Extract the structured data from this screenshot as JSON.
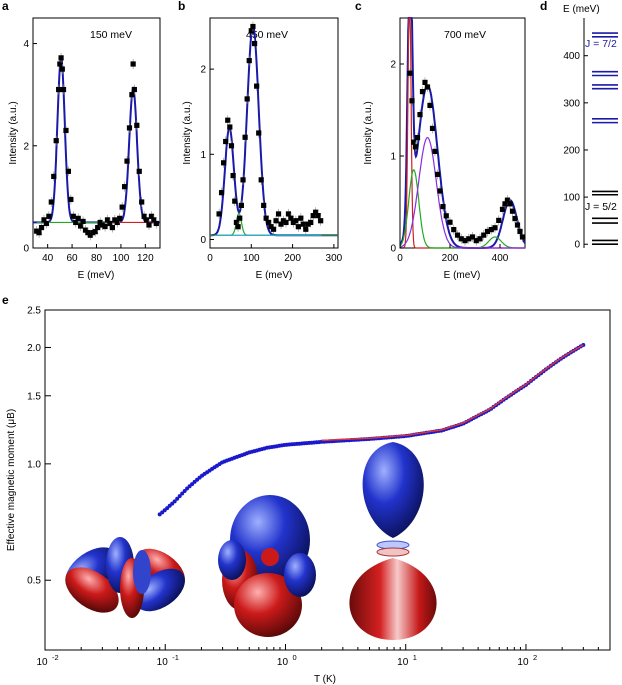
{
  "colors": {
    "fit": "#1a1aa8",
    "data": "#000000",
    "green": "#22aa22",
    "red": "#cc2222",
    "cyan": "#22aacc",
    "level_gs": "#000000",
    "level_ex": "#1a1aa8",
    "moment_data": "#1a1acc",
    "moment_fit": "#dd3333"
  },
  "panels": {
    "a": {
      "label": "a",
      "annotation": "150 meV",
      "chart_data": {
        "type": "scatter",
        "xlabel": "E (meV)",
        "ylabel": "Intensity (a.u.)",
        "xlim": [
          28,
          132
        ],
        "ylim": [
          0,
          4.5
        ],
        "xticks": [
          "40",
          "60",
          "80",
          "100",
          "120"
        ],
        "yticks": [
          "0",
          "2",
          "4"
        ],
        "points": [
          [
            31,
            0.33
          ],
          [
            33,
            0.3
          ],
          [
            35,
            0.4
          ],
          [
            37,
            0.55
          ],
          [
            39,
            0.48
          ],
          [
            41,
            0.62
          ],
          [
            43,
            0.9
          ],
          [
            45,
            1.4
          ],
          [
            47,
            2.1
          ],
          [
            49,
            3.1
          ],
          [
            50,
            3.6
          ],
          [
            51,
            3.72
          ],
          [
            52,
            3.5
          ],
          [
            53,
            3.1
          ],
          [
            55,
            2.3
          ],
          [
            57,
            1.5
          ],
          [
            59,
            0.95
          ],
          [
            61,
            0.62
          ],
          [
            63,
            0.5
          ],
          [
            65,
            0.58
          ],
          [
            67,
            0.43
          ],
          [
            69,
            0.52
          ],
          [
            71,
            0.35
          ],
          [
            73,
            0.3
          ],
          [
            75,
            0.25
          ],
          [
            77,
            0.3
          ],
          [
            79,
            0.32
          ],
          [
            81,
            0.4
          ],
          [
            83,
            0.5
          ],
          [
            85,
            0.45
          ],
          [
            87,
            0.42
          ],
          [
            89,
            0.55
          ],
          [
            91,
            0.48
          ],
          [
            93,
            0.4
          ],
          [
            95,
            0.55
          ],
          [
            97,
            0.5
          ],
          [
            99,
            0.58
          ],
          [
            101,
            0.8
          ],
          [
            103,
            1.2
          ],
          [
            105,
            1.7
          ],
          [
            107,
            2.35
          ],
          [
            109,
            3.0
          ],
          [
            110,
            3.6
          ],
          [
            111,
            3.1
          ],
          [
            113,
            2.4
          ],
          [
            115,
            1.5
          ],
          [
            117,
            0.9
          ],
          [
            119,
            0.62
          ],
          [
            121,
            0.55
          ],
          [
            123,
            0.45
          ],
          [
            125,
            0.62
          ],
          [
            127,
            0.55
          ],
          [
            129,
            0.48
          ]
        ],
        "series": [
          {
            "key": "fit",
            "peaks": [
              [
                51,
                3.22,
                3.0
              ],
              [
                110,
                2.62,
                3.2
              ]
            ],
            "baseline": 0.5
          },
          {
            "key": "green",
            "range": [
              31,
              90
            ],
            "value": 0.5
          },
          {
            "key": "red",
            "range": [
              90,
              130
            ],
            "value": 0.5
          }
        ]
      }
    },
    "b": {
      "label": "b",
      "annotation": "450 meV",
      "chart_data": {
        "type": "scatter",
        "xlabel": "E (meV)",
        "ylabel": "Intensity (a.u.)",
        "xlim": [
          0,
          310
        ],
        "ylim": [
          -0.1,
          2.6
        ],
        "xticks": [
          "0",
          "100",
          "200",
          "300"
        ],
        "yticks": [
          "0",
          "1",
          "2"
        ],
        "points": [
          [
            22,
            0.3
          ],
          [
            28,
            0.55
          ],
          [
            33,
            0.9
          ],
          [
            38,
            1.15
          ],
          [
            43,
            1.4
          ],
          [
            48,
            1.32
          ],
          [
            52,
            1.1
          ],
          [
            56,
            0.75
          ],
          [
            60,
            0.45
          ],
          [
            64,
            0.2
          ],
          [
            68,
            0.15
          ],
          [
            72,
            0.25
          ],
          [
            76,
            0.4
          ],
          [
            80,
            0.7
          ],
          [
            85,
            1.2
          ],
          [
            90,
            1.65
          ],
          [
            95,
            2.1
          ],
          [
            100,
            2.45
          ],
          [
            104,
            2.5
          ],
          [
            108,
            2.3
          ],
          [
            113,
            1.8
          ],
          [
            118,
            1.25
          ],
          [
            124,
            0.7
          ],
          [
            130,
            0.4
          ],
          [
            136,
            0.25
          ],
          [
            142,
            0.2
          ],
          [
            148,
            0.15
          ],
          [
            154,
            0.12
          ],
          [
            160,
            0.22
          ],
          [
            166,
            0.3
          ],
          [
            172,
            0.18
          ],
          [
            178,
            0.22
          ],
          [
            184,
            0.2
          ],
          [
            190,
            0.3
          ],
          [
            196,
            0.25
          ],
          [
            202,
            0.2
          ],
          [
            208,
            0.22
          ],
          [
            214,
            0.15
          ],
          [
            220,
            0.25
          ],
          [
            226,
            0.18
          ],
          [
            232,
            0.12
          ],
          [
            238,
            0.18
          ],
          [
            244,
            0.2
          ],
          [
            250,
            0.28
          ],
          [
            256,
            0.32
          ],
          [
            262,
            0.28
          ],
          [
            268,
            0.22
          ]
        ],
        "series": [
          {
            "key": "fit",
            "peaks": [
              [
                47,
                1.26,
                11
              ],
              [
                104,
                2.46,
                14
              ]
            ],
            "baseline": 0.05
          },
          {
            "key": "green",
            "peaks": [
              [
                70,
                0.26,
                6
              ]
            ],
            "baseline": 0.05
          },
          {
            "key": "cyan",
            "range": [
              15,
              270
            ],
            "value": 0.05
          }
        ]
      }
    },
    "c": {
      "label": "c",
      "annotation": "700 meV",
      "chart_data": {
        "type": "scatter",
        "xlabel": "E (meV)",
        "ylabel": "Intensity (a.u.)",
        "xlim": [
          0,
          500
        ],
        "ylim": [
          0,
          2.5
        ],
        "xticks": [
          "0",
          "200",
          "400"
        ],
        "yticks": [
          "0",
          "1",
          "2"
        ],
        "points": [
          [
            40,
            1.9
          ],
          [
            48,
            1.6
          ],
          [
            55,
            1.15
          ],
          [
            62,
            1.1
          ],
          [
            70,
            1.2
          ],
          [
            80,
            1.45
          ],
          [
            90,
            1.7
          ],
          [
            100,
            1.8
          ],
          [
            110,
            1.75
          ],
          [
            120,
            1.55
          ],
          [
            130,
            1.3
          ],
          [
            140,
            1.05
          ],
          [
            150,
            0.8
          ],
          [
            160,
            0.62
          ],
          [
            172,
            0.45
          ],
          [
            185,
            0.35
          ],
          [
            200,
            0.28
          ],
          [
            215,
            0.2
          ],
          [
            230,
            0.14
          ],
          [
            245,
            0.1
          ],
          [
            260,
            0.08
          ],
          [
            275,
            0.1
          ],
          [
            290,
            0.12
          ],
          [
            305,
            0.08
          ],
          [
            320,
            0.1
          ],
          [
            335,
            0.14
          ],
          [
            350,
            0.18
          ],
          [
            365,
            0.2
          ],
          [
            380,
            0.22
          ],
          [
            395,
            0.3
          ],
          [
            410,
            0.42
          ],
          [
            420,
            0.48
          ],
          [
            430,
            0.52
          ],
          [
            440,
            0.48
          ],
          [
            450,
            0.4
          ],
          [
            460,
            0.32
          ],
          [
            470,
            0.25
          ],
          [
            480,
            0.18
          ],
          [
            490,
            0.12
          ]
        ],
        "series": [
          {
            "key": "fit",
            "peaks": [
              [
                40,
                2.9,
                9
              ],
              [
                110,
                1.77,
                40
              ],
              [
                440,
                0.52,
                28
              ]
            ],
            "baseline": 0.0
          },
          {
            "key": "red",
            "peaks": [
              [
                38,
                2.9,
                6
              ]
            ],
            "baseline": 0.0
          },
          {
            "key": "green",
            "peaks": [
              [
                55,
                0.85,
                20
              ],
              [
                380,
                0.12,
                25
              ]
            ],
            "baseline": 0.0
          },
          {
            "key": "purple",
            "peaks": [
              [
                110,
                1.2,
                35
              ]
            ],
            "baseline": 0.0
          }
        ]
      }
    },
    "d": {
      "label": "d",
      "ylabel": "E (meV)",
      "j_upper": "J = 7/2",
      "j_lower": "J = 5/2",
      "chart_data": {
        "type": "levels",
        "ylim": [
          -8,
          480
        ],
        "yticks": [
          "0",
          "100",
          "200",
          "300",
          "400"
        ],
        "levels_lower": [
          0,
          8,
          45,
          55,
          105,
          112
        ],
        "levels_upper": [
          258,
          266,
          330,
          338,
          358,
          366,
          440,
          448
        ]
      }
    },
    "e": {
      "label": "e",
      "chart_data": {
        "type": "scatter",
        "xlabel": "T (K)",
        "ylabel": "Effective magnetic moment (μB)",
        "xscale": "log",
        "yscale": "log",
        "xlim": [
          0.01,
          500
        ],
        "ylim": [
          0.33,
          2.5
        ],
        "xticks": [
          "10",
          "10",
          "10",
          "10",
          "10"
        ],
        "xtick_exps": [
          "-2",
          "-1",
          "0",
          "1",
          "2"
        ],
        "yticks": [
          "0.5",
          "1.0",
          "1.5",
          "2.0",
          "2.5"
        ],
        "moment_curve": [
          [
            0.09,
            0.74
          ],
          [
            0.1,
            0.76
          ],
          [
            0.12,
            0.8
          ],
          [
            0.15,
            0.86
          ],
          [
            0.2,
            0.93
          ],
          [
            0.3,
            1.01
          ],
          [
            0.5,
            1.07
          ],
          [
            0.7,
            1.1
          ],
          [
            1,
            1.12
          ],
          [
            2,
            1.14
          ],
          [
            5,
            1.16
          ],
          [
            10,
            1.18
          ],
          [
            20,
            1.22
          ],
          [
            30,
            1.27
          ],
          [
            50,
            1.38
          ],
          [
            100,
            1.6
          ],
          [
            200,
            1.88
          ],
          [
            300,
            2.03
          ]
        ],
        "fit_curve": [
          [
            2,
            1.15
          ],
          [
            5,
            1.165
          ],
          [
            10,
            1.185
          ],
          [
            20,
            1.225
          ],
          [
            30,
            1.275
          ],
          [
            50,
            1.385
          ],
          [
            100,
            1.605
          ],
          [
            200,
            1.885
          ],
          [
            300,
            2.03
          ]
        ]
      }
    }
  }
}
